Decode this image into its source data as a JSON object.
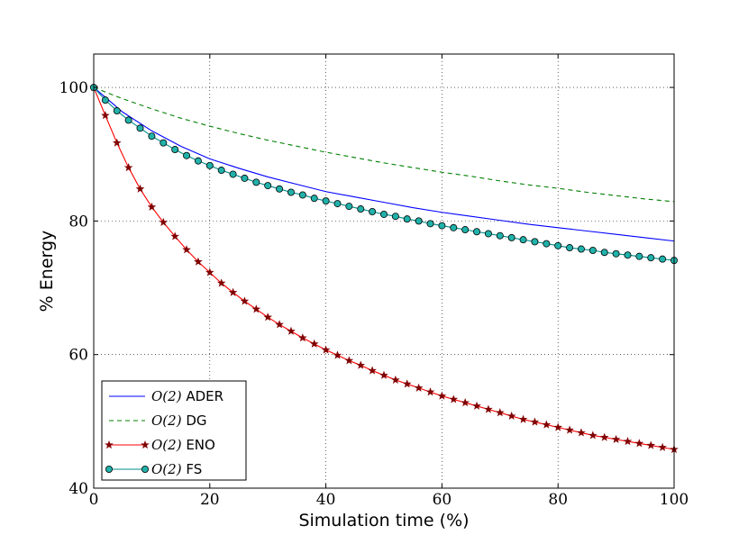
{
  "chart_data": {
    "type": "line",
    "title": "",
    "xlabel": "Simulation time (%)",
    "ylabel": "% Energy",
    "xlim": [
      0,
      100
    ],
    "ylim": [
      40,
      105
    ],
    "xticks": [
      0,
      20,
      40,
      60,
      80,
      100
    ],
    "yticks": [
      40,
      60,
      80,
      100
    ],
    "xtick_labels": [
      "0",
      "20",
      "40",
      "60",
      "80",
      "100"
    ],
    "ytick_labels": [
      "40",
      "60",
      "80",
      "100"
    ],
    "grid": true,
    "legend_position": "bottom-left",
    "series": [
      {
        "name": "ADER",
        "legend_math": "O(2)",
        "color": "#0000ff",
        "linestyle": "solid",
        "marker": "none",
        "x": [
          0,
          5,
          10,
          15,
          20,
          25,
          30,
          35,
          40,
          45,
          50,
          55,
          60,
          65,
          70,
          75,
          80,
          85,
          90,
          95,
          100
        ],
        "y": [
          100,
          96.3,
          93.5,
          91.2,
          89.3,
          87.9,
          86.6,
          85.5,
          84.4,
          83.6,
          82.8,
          82.0,
          81.3,
          80.7,
          80.1,
          79.5,
          79.0,
          78.5,
          78.0,
          77.5,
          77.0
        ]
      },
      {
        "name": "DG",
        "legend_math": "O(2)",
        "color": "#008000",
        "linestyle": "dashed",
        "marker": "none",
        "x": [
          0,
          5,
          10,
          15,
          20,
          25,
          30,
          35,
          40,
          45,
          50,
          55,
          60,
          65,
          70,
          75,
          80,
          85,
          90,
          95,
          100
        ],
        "y": [
          100,
          98.3,
          96.8,
          95.4,
          94.2,
          93.1,
          92.1,
          91.2,
          90.3,
          89.5,
          88.7,
          88.0,
          87.3,
          86.7,
          86.0,
          85.4,
          84.9,
          84.3,
          83.8,
          83.3,
          82.9
        ]
      },
      {
        "name": "ENO",
        "legend_math": "O(2)",
        "color": "#ff0000",
        "marker_color": "#800000",
        "linestyle": "solid",
        "marker": "star",
        "x": [
          0,
          2,
          4,
          6,
          8,
          10,
          12,
          14,
          16,
          18,
          20,
          22,
          24,
          26,
          28,
          30,
          32,
          34,
          36,
          38,
          40,
          42,
          44,
          46,
          48,
          50,
          52,
          54,
          56,
          58,
          60,
          62,
          64,
          66,
          68,
          70,
          72,
          74,
          76,
          78,
          80,
          82,
          84,
          86,
          88,
          90,
          92,
          94,
          96,
          98,
          100
        ],
        "y": [
          100,
          95.8,
          91.7,
          88.0,
          84.8,
          82.1,
          79.8,
          77.7,
          75.7,
          73.9,
          72.3,
          70.7,
          69.3,
          68.0,
          66.8,
          65.6,
          64.5,
          63.5,
          62.5,
          61.6,
          60.7,
          59.9,
          59.1,
          58.4,
          57.6,
          56.9,
          56.2,
          55.6,
          55.0,
          54.4,
          53.8,
          53.3,
          52.8,
          52.3,
          51.8,
          51.3,
          50.8,
          50.3,
          49.9,
          49.5,
          49.1,
          48.7,
          48.3,
          47.9,
          47.6,
          47.3,
          47.0,
          46.7,
          46.4,
          46.1,
          45.8
        ]
      },
      {
        "name": "FS",
        "legend_math": "O(2)",
        "color": "#008b8b",
        "marker_color": "#20b2aa",
        "linestyle": "solid",
        "marker": "circle",
        "x": [
          0,
          2,
          4,
          6,
          8,
          10,
          12,
          14,
          16,
          18,
          20,
          22,
          24,
          26,
          28,
          30,
          32,
          34,
          36,
          38,
          40,
          42,
          44,
          46,
          48,
          50,
          52,
          54,
          56,
          58,
          60,
          62,
          64,
          66,
          68,
          70,
          72,
          74,
          76,
          78,
          80,
          82,
          84,
          86,
          88,
          90,
          92,
          94,
          96,
          98,
          100
        ],
        "y": [
          100,
          98.1,
          96.5,
          95.1,
          93.9,
          92.7,
          91.7,
          90.7,
          89.8,
          89.0,
          88.3,
          87.6,
          87.0,
          86.4,
          85.8,
          85.3,
          84.8,
          84.3,
          83.9,
          83.4,
          83.0,
          82.6,
          82.2,
          81.8,
          81.4,
          81.0,
          80.7,
          80.3,
          80.0,
          79.6,
          79.3,
          79.0,
          78.7,
          78.4,
          78.1,
          77.8,
          77.5,
          77.2,
          76.9,
          76.6,
          76.3,
          76.0,
          75.8,
          75.6,
          75.3,
          75.1,
          74.9,
          74.7,
          74.5,
          74.3,
          74.1
        ]
      }
    ]
  }
}
